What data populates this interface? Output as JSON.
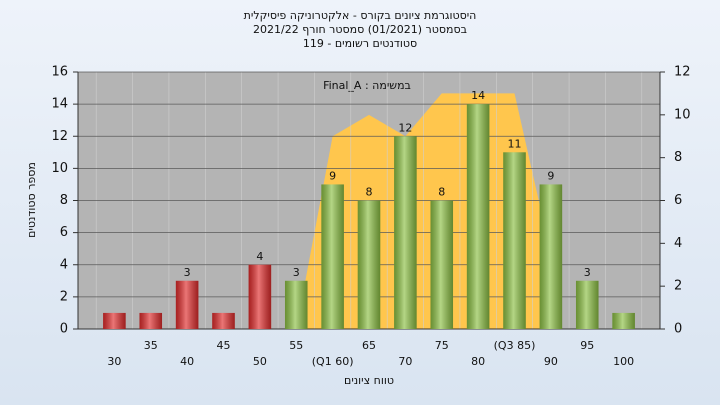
{
  "chart_data": {
    "type": "bar",
    "title": [
      "היסטוגרמת ציונים בקורס - אלקטרוניקה פיסיקלית",
      "בסמסטר (01/2021) סמסטר חורף 2021/22",
      "סטודנטים רשומים - 119"
    ],
    "annotation": "במשימה : Final_A",
    "xlabel": "טווח ציונים",
    "ylabel": "מספר סטודנטים",
    "categories": [
      "30",
      "35",
      "40",
      "45",
      "50",
      "55",
      "(Q1 60)",
      "65",
      "70",
      "75",
      "80",
      "(Q3 85)",
      "90",
      "95",
      "100"
    ],
    "values": [
      1,
      1,
      3,
      1,
      4,
      3,
      9,
      8,
      12,
      8,
      14,
      11,
      9,
      3,
      1
    ],
    "value_labels": [
      null,
      null,
      "3",
      null,
      "4",
      "3",
      "9",
      "8",
      "12",
      "8",
      "14",
      "11",
      "9",
      "3",
      null
    ],
    "colors": [
      "#e02c2c",
      "#e02c2c",
      "#e02c2c",
      "#e02c2c",
      "#e02c2c",
      "#8cc044",
      "#8cc044",
      "#8cc044",
      "#8cc044",
      "#8cc044",
      "#8cc044",
      "#8cc044",
      "#8cc044",
      "#8cc044",
      "#8cc044"
    ],
    "area": {
      "axis": "y2",
      "color": "#ffc64d",
      "values": [
        null,
        null,
        null,
        null,
        null,
        0,
        9,
        10,
        9,
        11,
        11,
        11,
        3.5,
        null,
        null
      ]
    },
    "ylim": [
      0,
      16
    ],
    "yticks": [
      0,
      2,
      4,
      6,
      8,
      10,
      12,
      14,
      16
    ],
    "y2lim": [
      0,
      12
    ],
    "y2ticks": [
      0,
      2,
      4,
      6,
      8,
      10,
      12
    ],
    "grid": true
  }
}
